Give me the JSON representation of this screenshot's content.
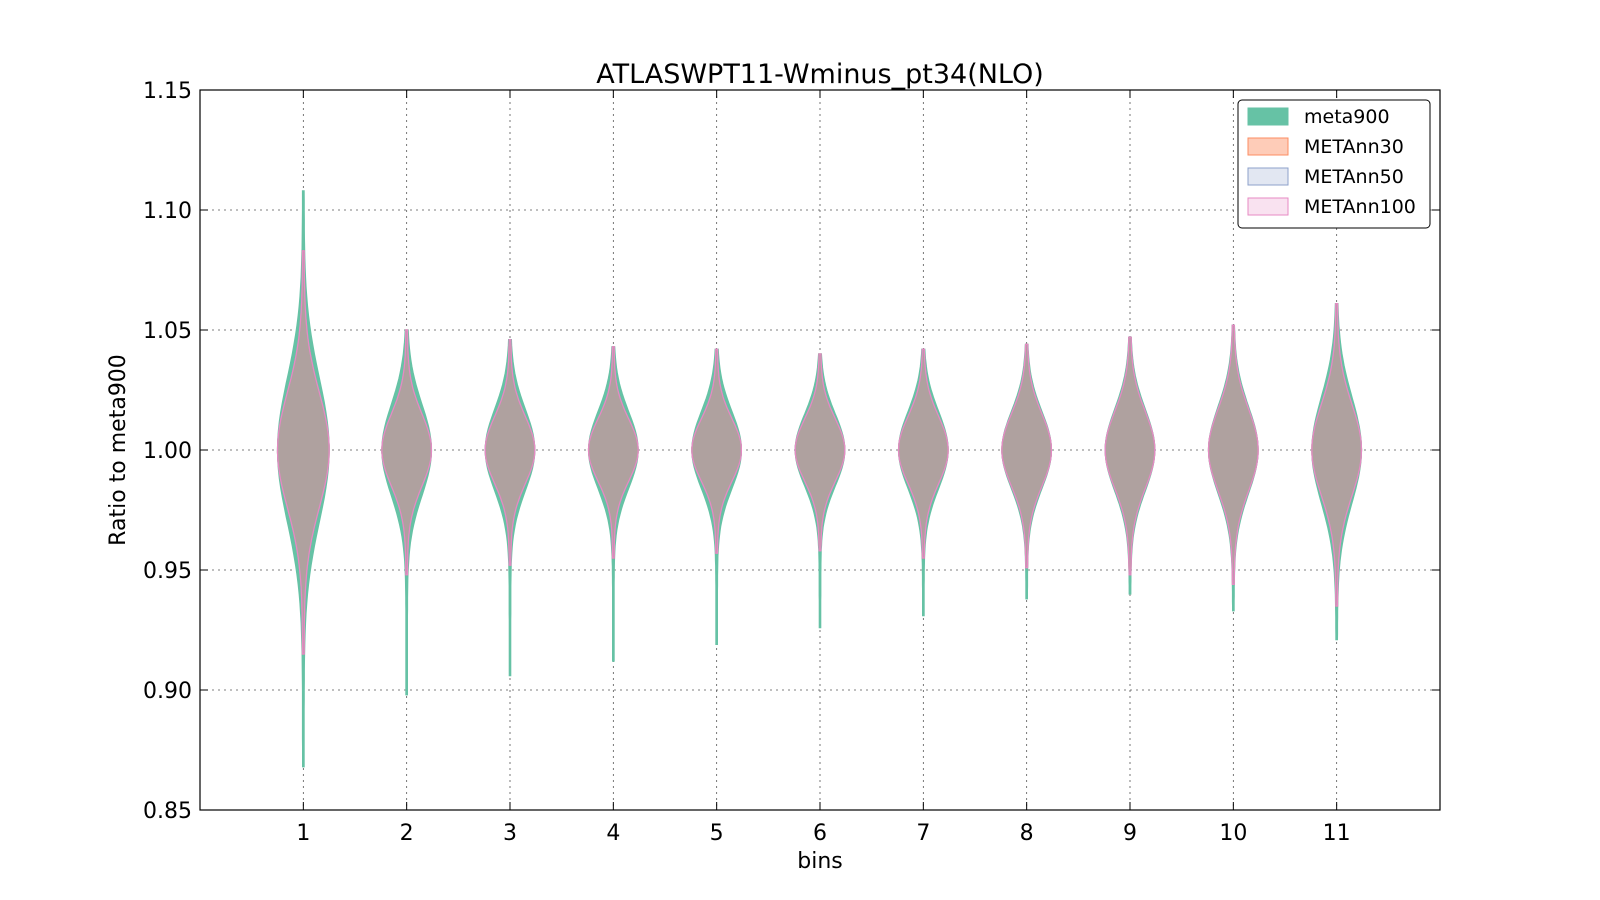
{
  "chart_data": {
    "type": "violin",
    "title": "ATLASWPT11-Wminus_pt34(NLO)",
    "xlabel": "bins",
    "ylabel": "Ratio to meta900",
    "categories": [
      "1",
      "2",
      "3",
      "4",
      "5",
      "6",
      "7",
      "8",
      "9",
      "10",
      "11"
    ],
    "x_ticks": [
      1,
      2,
      3,
      4,
      5,
      6,
      7,
      8,
      9,
      10,
      11
    ],
    "xlim": [
      0,
      12.0
    ],
    "ylim": [
      0.85,
      1.15
    ],
    "y_ticks": [
      0.85,
      0.9,
      0.95,
      1.0,
      1.05,
      1.1,
      1.15
    ],
    "y_tick_labels": [
      "0.85",
      "0.90",
      "0.95",
      "1.00",
      "1.05",
      "1.10",
      "1.15"
    ],
    "grid": true,
    "legend_position": "top-right",
    "series": [
      {
        "name": "meta900",
        "fill": "#66c2a5",
        "stroke": "#66c2a5",
        "opacity": 1.0,
        "ranges": [
          [
            0.868,
            1.108
          ],
          [
            0.898,
            1.05
          ],
          [
            0.906,
            1.046
          ],
          [
            0.912,
            1.043
          ],
          [
            0.919,
            1.042
          ],
          [
            0.926,
            1.04
          ],
          [
            0.931,
            1.042
          ],
          [
            0.938,
            1.044
          ],
          [
            0.94,
            1.047
          ],
          [
            0.933,
            1.052
          ],
          [
            0.921,
            1.061
          ]
        ],
        "widths": [
          0.5,
          0.48,
          0.48,
          0.48,
          0.48,
          0.48,
          0.48,
          0.48,
          0.48,
          0.48,
          0.48
        ],
        "spreads": [
          0.03,
          0.019,
          0.017,
          0.016,
          0.016,
          0.015,
          0.016,
          0.016,
          0.017,
          0.018,
          0.022
        ]
      },
      {
        "name": "METAnn30",
        "fill": "#fc8d62",
        "stroke": "#fc8d62",
        "opacity": 0.45,
        "ranges": [
          [
            0.915,
            1.083
          ],
          [
            0.948,
            1.05
          ],
          [
            0.952,
            1.046
          ],
          [
            0.955,
            1.043
          ],
          [
            0.957,
            1.042
          ],
          [
            0.958,
            1.04
          ],
          [
            0.955,
            1.042
          ],
          [
            0.951,
            1.044
          ],
          [
            0.948,
            1.047
          ],
          [
            0.944,
            1.052
          ],
          [
            0.935,
            1.061
          ]
        ],
        "widths": [
          0.5,
          0.48,
          0.48,
          0.48,
          0.48,
          0.48,
          0.48,
          0.48,
          0.48,
          0.48,
          0.48
        ],
        "spreads": [
          0.024,
          0.015,
          0.014,
          0.013,
          0.013,
          0.013,
          0.014,
          0.015,
          0.016,
          0.017,
          0.019
        ]
      },
      {
        "name": "METAnn50",
        "fill": "#8da0cb",
        "stroke": "#8da0cb",
        "opacity": 0.25,
        "ranges": [
          [
            0.915,
            1.083
          ],
          [
            0.948,
            1.05
          ],
          [
            0.952,
            1.046
          ],
          [
            0.955,
            1.043
          ],
          [
            0.957,
            1.042
          ],
          [
            0.958,
            1.04
          ],
          [
            0.955,
            1.042
          ],
          [
            0.951,
            1.044
          ],
          [
            0.948,
            1.047
          ],
          [
            0.944,
            1.052
          ],
          [
            0.935,
            1.061
          ]
        ],
        "widths": [
          0.5,
          0.48,
          0.48,
          0.48,
          0.48,
          0.48,
          0.48,
          0.48,
          0.48,
          0.48,
          0.48
        ],
        "spreads": [
          0.024,
          0.015,
          0.014,
          0.013,
          0.013,
          0.013,
          0.014,
          0.015,
          0.016,
          0.017,
          0.019
        ]
      },
      {
        "name": "METAnn100",
        "fill": "#e78ac3",
        "stroke": "#e78ac3",
        "opacity": 0.2,
        "ranges": [
          [
            0.915,
            1.083
          ],
          [
            0.948,
            1.05
          ],
          [
            0.952,
            1.046
          ],
          [
            0.955,
            1.043
          ],
          [
            0.957,
            1.042
          ],
          [
            0.958,
            1.04
          ],
          [
            0.955,
            1.042
          ],
          [
            0.951,
            1.044
          ],
          [
            0.948,
            1.047
          ],
          [
            0.944,
            1.052
          ],
          [
            0.935,
            1.061
          ]
        ],
        "widths": [
          0.5,
          0.48,
          0.48,
          0.48,
          0.48,
          0.48,
          0.48,
          0.48,
          0.48,
          0.48,
          0.48
        ],
        "spreads": [
          0.024,
          0.015,
          0.014,
          0.013,
          0.013,
          0.013,
          0.014,
          0.015,
          0.016,
          0.017,
          0.019
        ]
      }
    ]
  }
}
